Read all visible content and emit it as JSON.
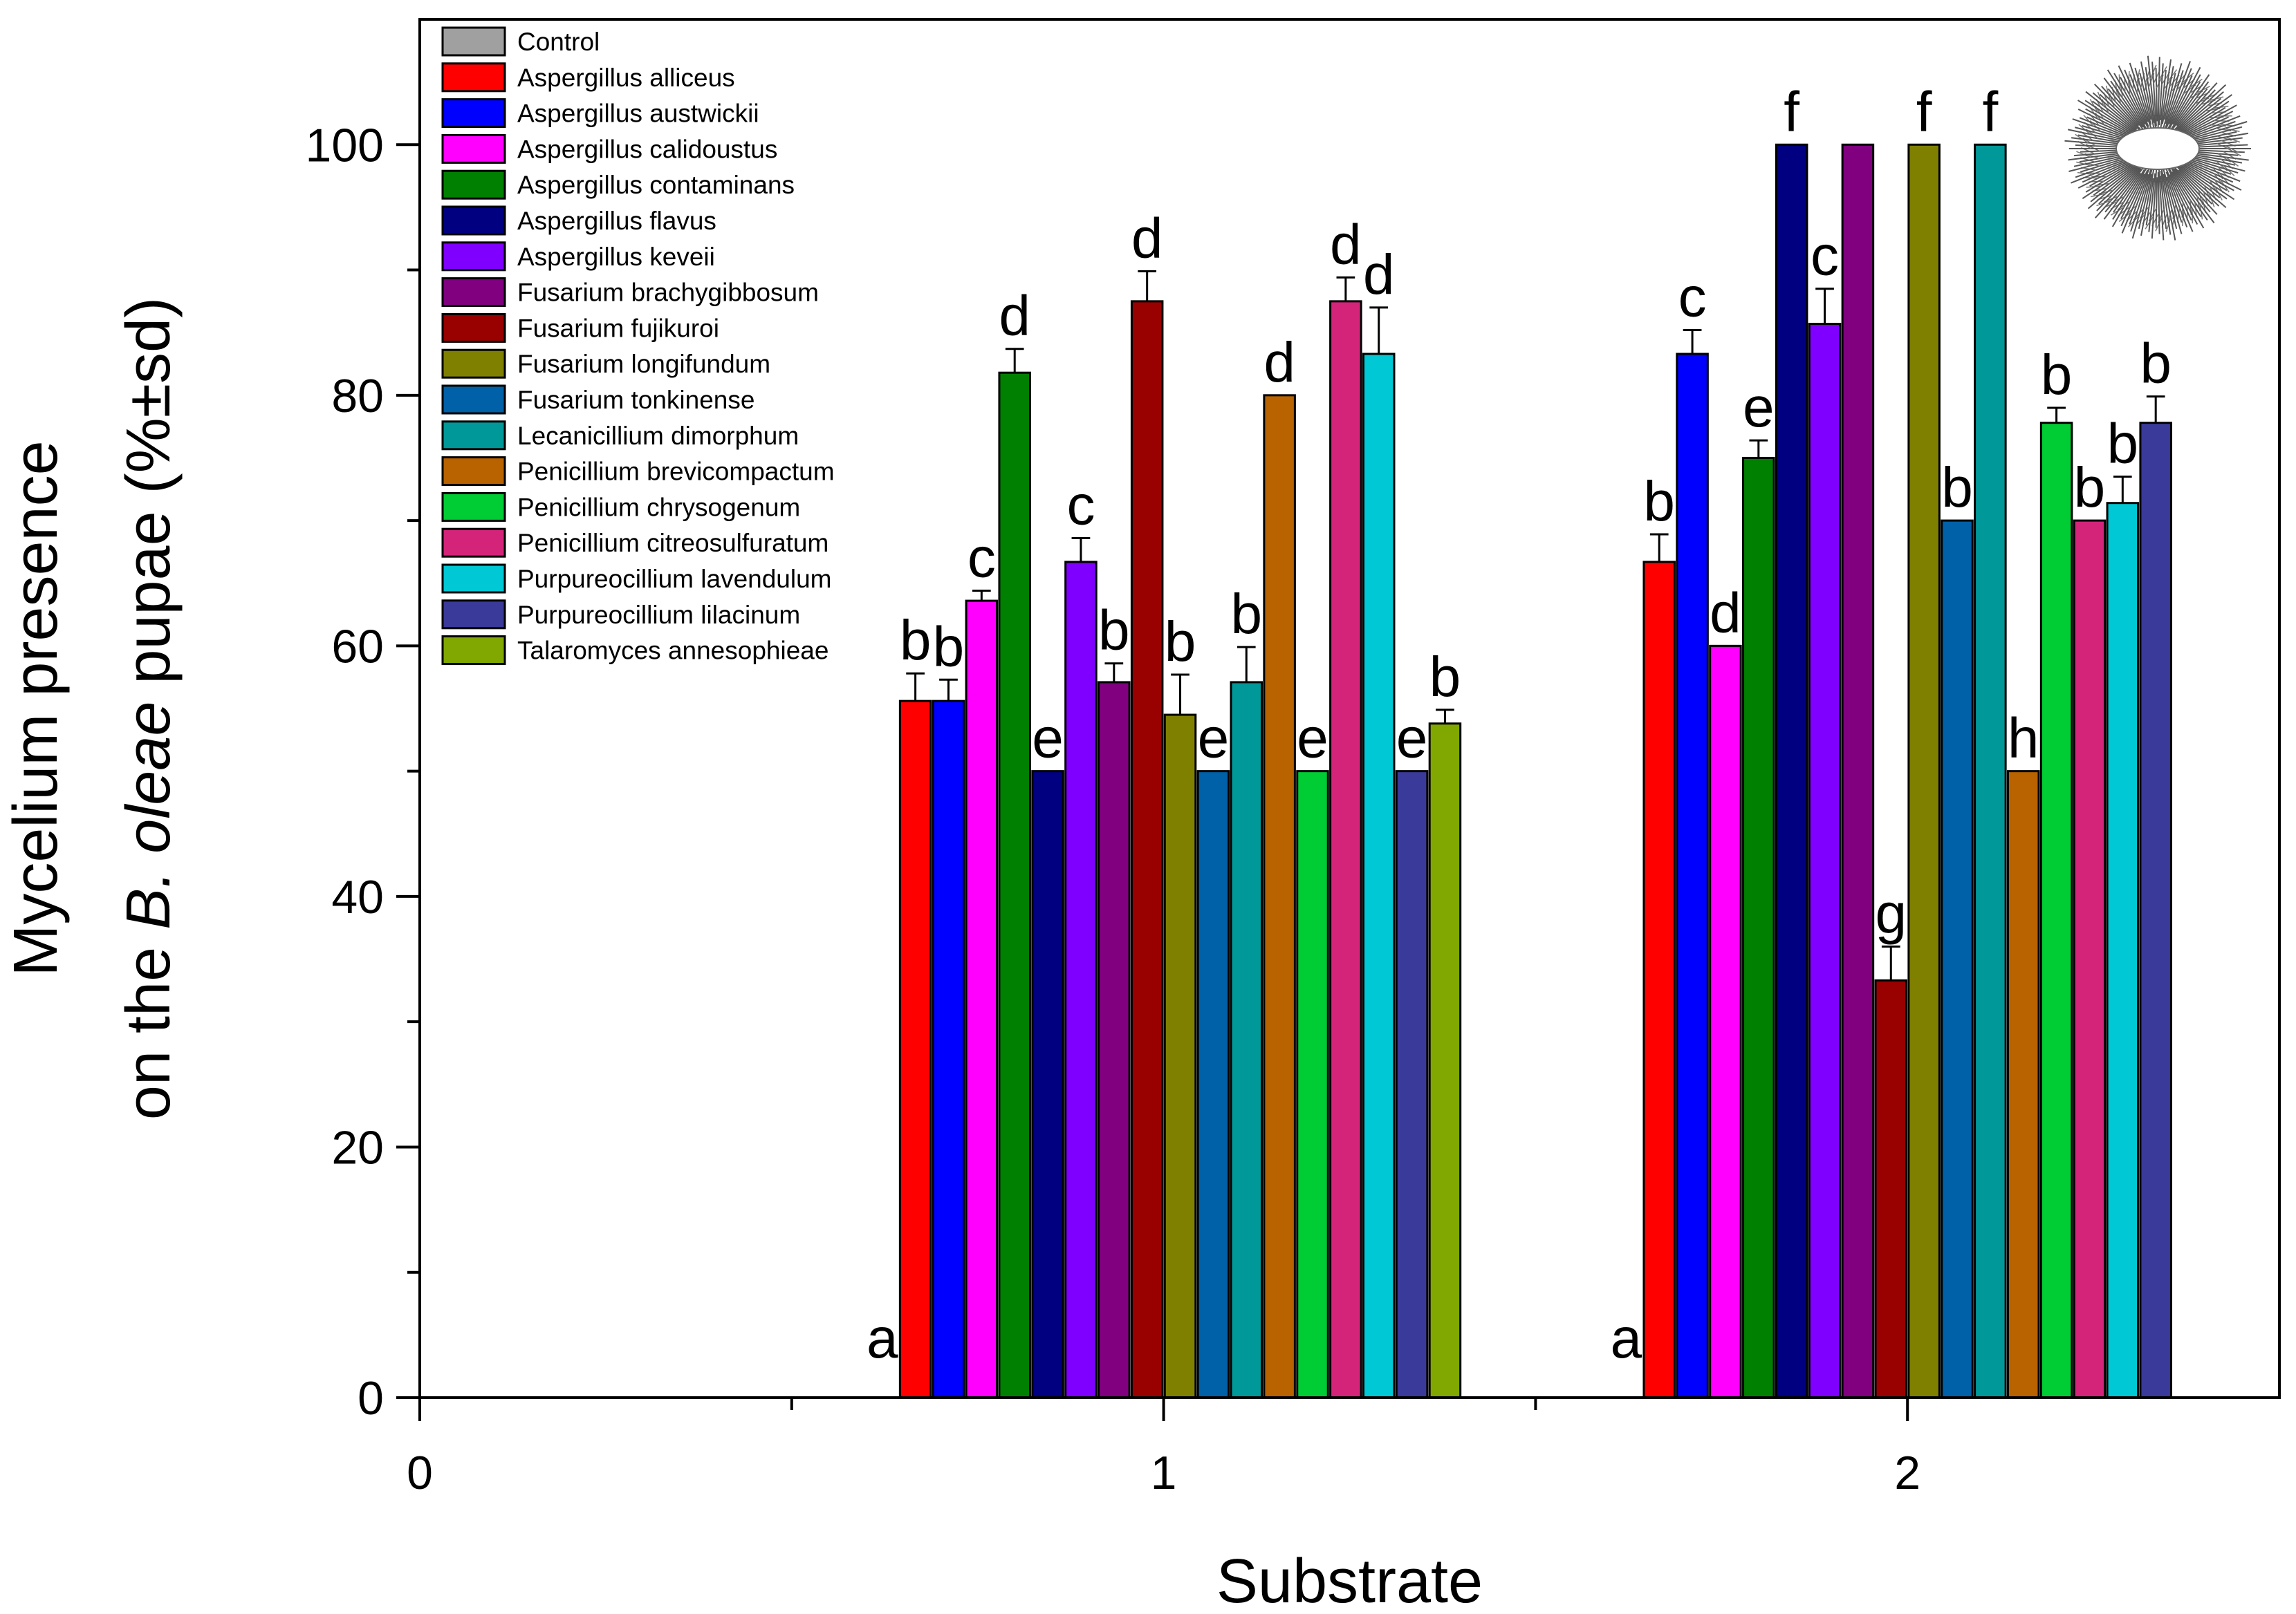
{
  "chart_data": {
    "type": "bar",
    "xlabel": "Substrate",
    "ylabel": {
      "line1": "Mycelium presence",
      "line2_prefix": "on the ",
      "line2_italic": "B. oleae",
      "line2_suffix": " pupae (%±sd)"
    },
    "xlim": [
      0,
      2.5
    ],
    "ylim": [
      0,
      110
    ],
    "xticks": [
      0,
      1,
      2
    ],
    "xtick_labels": [
      "0",
      "1",
      "2"
    ],
    "yticks": [
      0,
      20,
      40,
      60,
      80,
      100
    ],
    "ytick_labels": [
      "0",
      "20",
      "40",
      "60",
      "80",
      "100"
    ],
    "y_minor_step": 10,
    "categories": [
      "1",
      "2"
    ],
    "bar_spacing": 0.0445,
    "series": [
      {
        "name": "Control",
        "color": "#a0a0a0",
        "values": [
          0,
          0
        ],
        "errors": [
          0,
          0
        ],
        "letters": [
          "a",
          "a"
        ]
      },
      {
        "name": "Aspergillus alliceus",
        "color": "#ff0000",
        "values": [
          55.6,
          66.7
        ],
        "errors": [
          2.2,
          2.2
        ],
        "letters": [
          "b",
          "b"
        ]
      },
      {
        "name": "Aspergillus austwickii",
        "color": "#0000ff",
        "values": [
          55.6,
          83.3
        ],
        "errors": [
          1.7,
          1.9
        ],
        "letters": [
          "b",
          "c"
        ]
      },
      {
        "name": "Aspergillus calidoustus",
        "color": "#ff00ff",
        "values": [
          63.6,
          60.0
        ],
        "errors": [
          0.8,
          0.0
        ],
        "letters": [
          "c",
          "d"
        ]
      },
      {
        "name": "Aspergillus contaminans",
        "color": "#008000",
        "values": [
          81.8,
          75.0
        ],
        "errors": [
          1.9,
          1.4
        ],
        "letters": [
          "d",
          "e"
        ]
      },
      {
        "name": "Aspergillus flavus",
        "color": "#000080",
        "values": [
          50.0,
          100.0
        ],
        "errors": [
          0,
          0
        ],
        "letters": [
          "e",
          "f"
        ]
      },
      {
        "name": "Aspergillus keveii",
        "color": "#8000ff",
        "values": [
          66.7,
          85.7
        ],
        "errors": [
          1.9,
          2.8
        ],
        "letters": [
          "c",
          "c"
        ]
      },
      {
        "name": "Fusarium brachygibbosum",
        "color": "#800080",
        "values": [
          57.1,
          100.0
        ],
        "errors": [
          1.5,
          0
        ],
        "letters": [
          "b",
          ""
        ]
      },
      {
        "name": "Fusarium fujikuroi",
        "color": "#990000",
        "values": [
          87.5,
          33.3
        ],
        "errors": [
          2.4,
          2.7
        ],
        "letters": [
          "d",
          "g"
        ]
      },
      {
        "name": "Fusarium longifundum",
        "color": "#808000",
        "values": [
          54.5,
          100.0
        ],
        "errors": [
          3.2,
          0
        ],
        "letters": [
          "b",
          "f"
        ]
      },
      {
        "name": "Fusarium tonkinense",
        "color": "#0060a8",
        "values": [
          50.0,
          70.0
        ],
        "errors": [
          0,
          0
        ],
        "letters": [
          "e",
          "b"
        ]
      },
      {
        "name": "Lecanicillium dimorphum",
        "color": "#009898",
        "values": [
          57.1,
          100.0
        ],
        "errors": [
          2.8,
          0
        ],
        "letters": [
          "b",
          "f"
        ]
      },
      {
        "name": "Penicillium brevicompactum",
        "color": "#b86200",
        "values": [
          80.0,
          50.0
        ],
        "errors": [
          0,
          0
        ],
        "letters": [
          "d",
          "h"
        ]
      },
      {
        "name": "Penicillium chrysogenum",
        "color": "#00cc33",
        "values": [
          50.0,
          77.8
        ],
        "errors": [
          0,
          1.2
        ],
        "letters": [
          "e",
          "b"
        ]
      },
      {
        "name": "Penicillium citreosulfuratum",
        "color": "#d4247a",
        "values": [
          87.5,
          70.0
        ],
        "errors": [
          1.9,
          0
        ],
        "letters": [
          "d",
          "b"
        ]
      },
      {
        "name": "Purpureocillium lavendulum",
        "color": "#00c8d4",
        "values": [
          83.3,
          71.4
        ],
        "errors": [
          3.7,
          2.1
        ],
        "letters": [
          "d",
          "b"
        ]
      },
      {
        "name": "Purpureocillium lilacinum",
        "color": "#3a3a9a",
        "values": [
          50.0,
          77.8
        ],
        "errors": [
          0,
          2.1
        ],
        "letters": [
          "e",
          "b"
        ]
      },
      {
        "name": "Talaromyces annesophieae",
        "color": "#80a800",
        "values": [
          53.8,
          0
        ],
        "errors": [
          1.1,
          0
        ],
        "letters": [
          "b",
          ""
        ]
      }
    ],
    "legend_position": "top-left",
    "grid": false
  }
}
